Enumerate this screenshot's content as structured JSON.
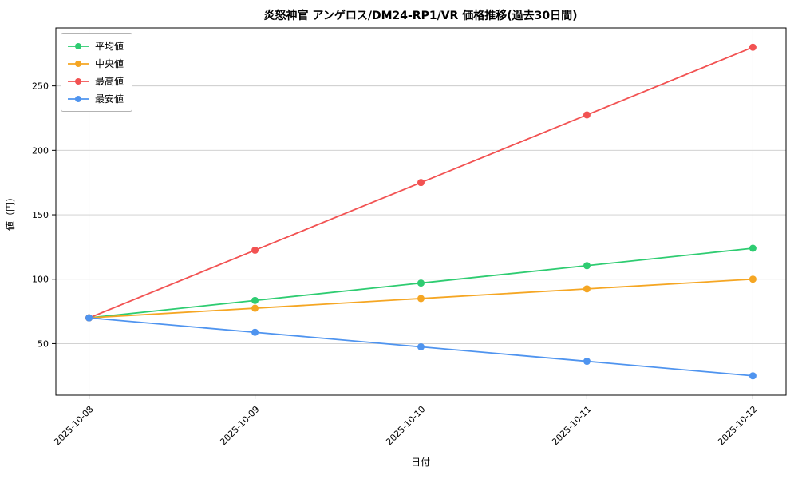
{
  "figure": {
    "background": "#ffffff",
    "grid_color": "#cccccc",
    "spine_color": "#000000"
  },
  "chart_data": {
    "type": "line",
    "title": "炎怒神官 アンゲロス/DM24-RP1/VR 価格推移(過去30日間)",
    "xlabel": "日付",
    "ylabel": "値（円）",
    "categories": [
      "2025-10-08",
      "2025-10-09",
      "2025-10-10",
      "2025-10-11",
      "2025-10-12"
    ],
    "series": [
      {
        "name": "平均値",
        "color": "#2ecc71",
        "values": [
          70,
          83.5,
          97,
          110.5,
          124
        ]
      },
      {
        "name": "中央値",
        "color": "#f5a623",
        "values": [
          70,
          77.5,
          85,
          92.5,
          100
        ]
      },
      {
        "name": "最高値",
        "color": "#f25252",
        "values": [
          70,
          122.5,
          175,
          227.5,
          280
        ]
      },
      {
        "name": "最安値",
        "color": "#4f94ef",
        "values": [
          70,
          58.8,
          47.5,
          36.3,
          25
        ]
      }
    ],
    "yticks": [
      50,
      100,
      150,
      200,
      250
    ],
    "ylim": [
      10,
      295
    ],
    "grid": true,
    "legend_position": "upper left",
    "marker": "circle"
  }
}
